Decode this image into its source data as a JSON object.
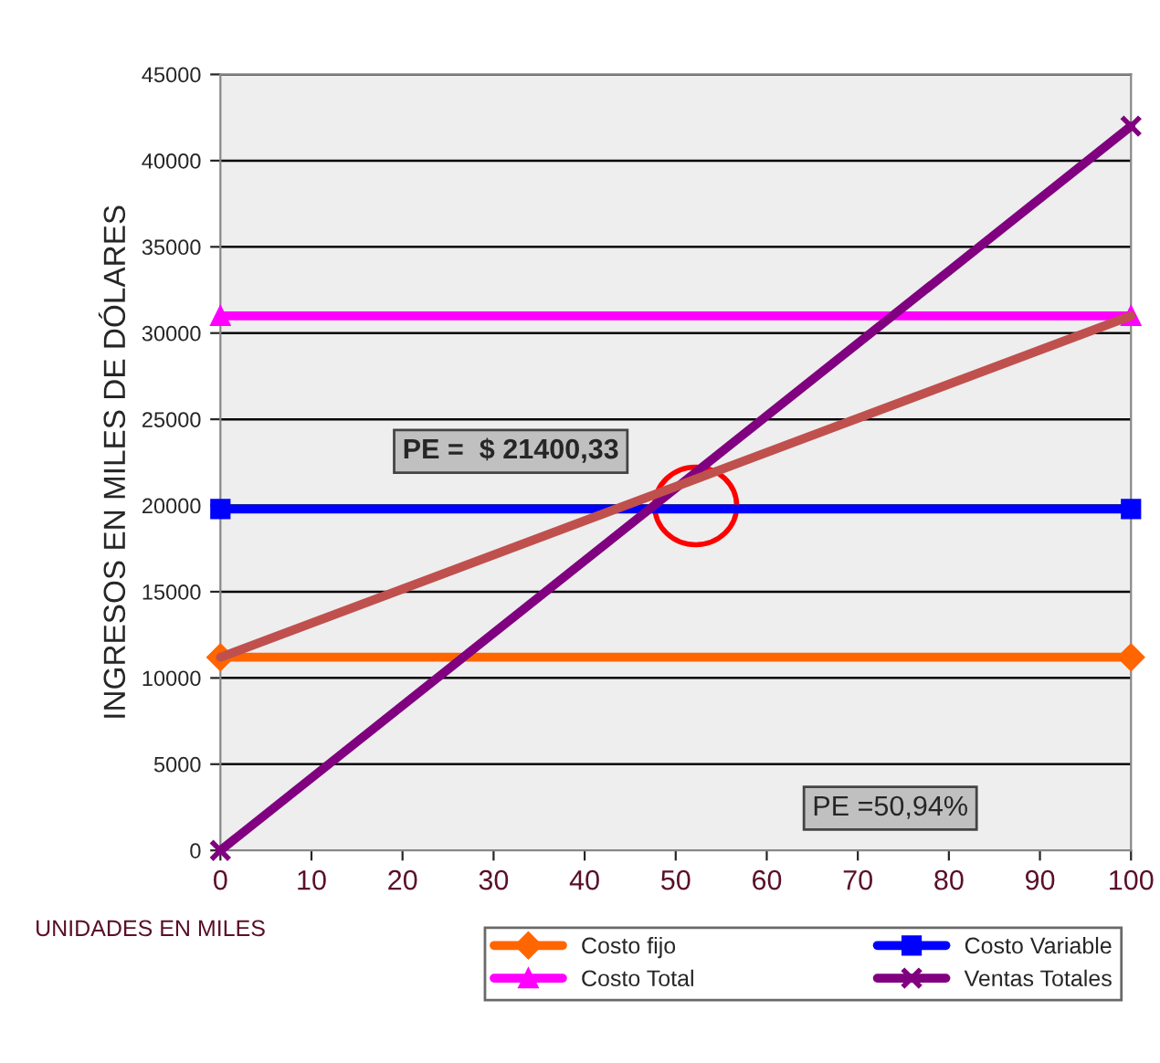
{
  "chart_data": {
    "type": "line",
    "xlabel": "UNIDADES EN MILES",
    "ylabel": "INGRESOS EN MILES DE DÓLARES",
    "x": [
      0,
      100
    ],
    "series": [
      {
        "name": "Costo fijo",
        "color": "#ff6600",
        "marker": "diamond",
        "values": [
          11200,
          11200
        ]
      },
      {
        "name": "Costo Variable",
        "color": "#0000ff",
        "marker": "square",
        "values": [
          19800,
          19800
        ]
      },
      {
        "name": "Costo Total",
        "color": "#ff00ff",
        "marker": "triangle",
        "values": [
          31000,
          31000
        ]
      },
      {
        "name": "Ventas Totales",
        "color": "#800080",
        "marker": "cross",
        "values": [
          0,
          42000
        ]
      },
      {
        "color": "#c0504d",
        "marker": "none",
        "values": [
          11200,
          31000
        ]
      }
    ],
    "annotations": [
      "PE =  $ 21400,33",
      "PE =50,94%"
    ],
    "xlim": [
      0,
      100
    ],
    "xticks": [
      0,
      10,
      20,
      30,
      40,
      50,
      60,
      70,
      80,
      90,
      100
    ],
    "ylim": [
      0,
      45000
    ],
    "yticks": [
      0,
      5000,
      10000,
      15000,
      20000,
      25000,
      30000,
      35000,
      40000,
      45000
    ],
    "grid": "y",
    "legend": "bottom",
    "line_style": "solid"
  }
}
